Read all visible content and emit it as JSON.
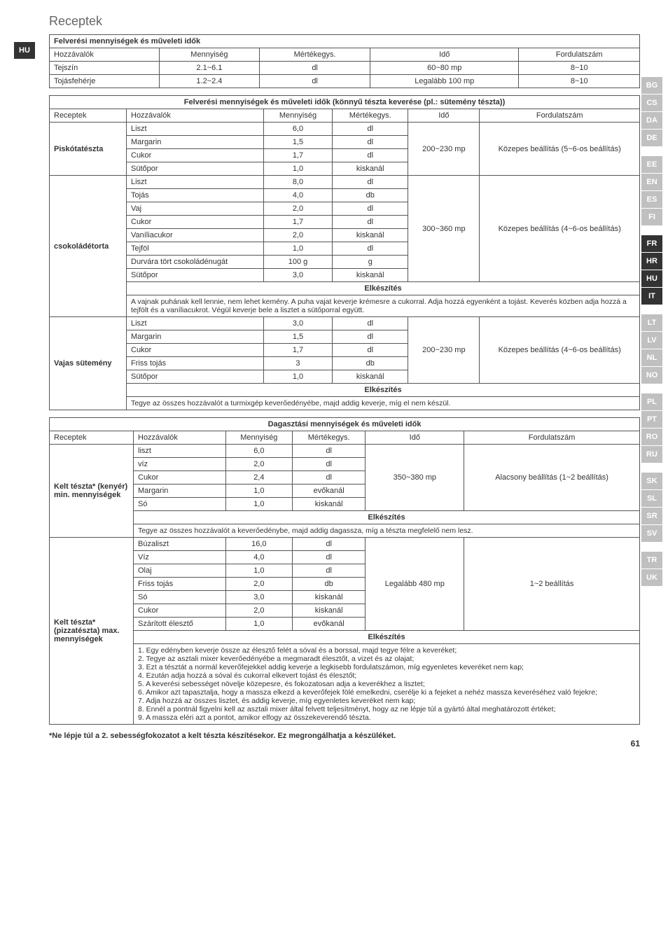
{
  "page": {
    "title": "Receptek",
    "footnote": "*Ne lépje túl a 2. sebességfokozatot a kelt tészta készítésekor. Ez megrongálhatja a készüléket.",
    "pagenum": "61"
  },
  "leftTabs": [
    "HU"
  ],
  "rightTabs": [
    "BG",
    "CS",
    "DA",
    "DE",
    "",
    "EE",
    "EN",
    "ES",
    "FI",
    "",
    "FR",
    "HR",
    "HU",
    "IT",
    "",
    "LT",
    "LV",
    "NL",
    "NO",
    "",
    "PL",
    "PT",
    "RO",
    "RU",
    "",
    "SK",
    "SL",
    "SR",
    "SV",
    "",
    "TR",
    "UK"
  ],
  "rightActive": [
    "FR",
    "HR",
    "HU",
    "IT"
  ],
  "table1": {
    "title": "Felverési mennyiségek és műveleti idők",
    "headers": [
      "Hozzávalók",
      "Mennyiség",
      "Mértékegys.",
      "Idő",
      "Fordulatszám"
    ],
    "rows": [
      [
        "Tejszín",
        "2.1~6.1",
        "dl",
        "60~80 mp",
        "8~10"
      ],
      [
        "Tojásfehérje",
        "1.2~2.4",
        "dl",
        "Legalább 100 mp",
        "8~10"
      ]
    ]
  },
  "table2": {
    "title": "Felverési mennyiségek és műveleti idők (könnyű tészta keverése (pl.: sütemény tészta))",
    "headers": [
      "Receptek",
      "Hozzávalók",
      "Mennyiség",
      "Mértékegys.",
      "Idő",
      "Fordulatszám"
    ],
    "groups": [
      {
        "name": "Piskótatészta",
        "time": "200~230 mp",
        "speed": "Közepes beállítás (5~6-os beállítás)",
        "rows": [
          [
            "Liszt",
            "6,0",
            "dl"
          ],
          [
            "Margarin",
            "1,5",
            "dl"
          ],
          [
            "Cukor",
            "1,7",
            "dl"
          ],
          [
            "Sütőpor",
            "1,0",
            "kiskanál"
          ]
        ]
      },
      {
        "name": "csokoládétorta",
        "time": "300~360 mp",
        "speed": "Közepes beállítás (4~6-os beállítás)",
        "rows": [
          [
            "Liszt",
            "8,0",
            "dl"
          ],
          [
            "Tojás",
            "4,0",
            "db"
          ],
          [
            "Vaj",
            "2,0",
            "dl"
          ],
          [
            "Cukor",
            "1,7",
            "dl"
          ],
          [
            "Vaníliacukor",
            "2,0",
            "kiskanál"
          ],
          [
            "Tejföl",
            "1,0",
            "dl"
          ],
          [
            "Durvára tört csokoládénugát",
            "100 g",
            "g"
          ],
          [
            "Sütőpor",
            "3,0",
            "kiskanál"
          ]
        ],
        "elkeszites": "Elkészítés",
        "note": "A vajnak puhának kell lennie, nem lehet kemény. A puha vajat keverje krémesre a cukorral. Adja hozzá egyenként a tojást. Keverés közben adja hozzá a tejfölt és a vaníliacukrot. Végül keverje bele a lisztet a sütőporral együtt."
      },
      {
        "name": "Vajas sütemény",
        "time": "200~230 mp",
        "speed": "Közepes beállítás (4~6-os beállítás)",
        "rows": [
          [
            "Liszt",
            "3,0",
            "dl"
          ],
          [
            "Margarin",
            "1,5",
            "dl"
          ],
          [
            "Cukor",
            "1,7",
            "dl"
          ],
          [
            "Friss tojás",
            "3",
            "db"
          ],
          [
            "Sütőpor",
            "1,0",
            "kiskanál"
          ]
        ],
        "elkeszites": "Elkészítés",
        "note": "Tegye az összes hozzávalót a turmixgép keverőedényébe, majd addig keverje, míg el nem készül."
      }
    ]
  },
  "table3": {
    "title": "Dagasztási mennyiségek és műveleti idők",
    "headers": [
      "Receptek",
      "Hozzávalók",
      "Mennyiség",
      "Mértékegys.",
      "Idő",
      "Fordulatszám"
    ],
    "groups": [
      {
        "name": "Kelt tészta* (kenyér) min. mennyiségek",
        "time": "350~380 mp",
        "speed": "Alacsony beállítás (1~2 beállítás)",
        "rows": [
          [
            "liszt",
            "6,0",
            "dl"
          ],
          [
            "víz",
            "2,0",
            "dl"
          ],
          [
            "Cukor",
            "2,4",
            "dl"
          ],
          [
            "Margarin",
            "1,0",
            "evőkanál"
          ],
          [
            "Só",
            "1,0",
            "kiskanál"
          ]
        ],
        "elkeszites": "Elkészítés",
        "note": "Tegye az összes hozzávalót a keverőedénybe, majd addig dagassza, míg a tészta megfelelő nem lesz."
      },
      {
        "name": "Kelt tészta* (pizzatészta) max. mennyiségek",
        "time": "Legalább 480 mp",
        "speed": "1~2 beállítás",
        "rows": [
          [
            "Búzaliszt",
            "16,0",
            "dl"
          ],
          [
            "Víz",
            "4,0",
            "dl"
          ],
          [
            "Olaj",
            "1,0",
            "dl"
          ],
          [
            "Friss tojás",
            "2,0",
            "db"
          ],
          [
            "Só",
            "3,0",
            "kiskanál"
          ],
          [
            "Cukor",
            "2,0",
            "kiskanál"
          ],
          [
            "Szárított élesztő",
            "1,0",
            "evőkanál"
          ]
        ],
        "elkeszites": "Elkészítés",
        "note": "1. Egy edényben keverje össze az élesztő felét a sóval és a borssal, majd tegye félre a keveréket;\n2. Tegye az asztali mixer keverőedényébe a megmaradt élesztőt, a vizet és az olajat;\n3. Ezt a tésztát a normál keverőfejekkel addig keverje a legkisebb fordulatszámon, míg egyenletes keveréket nem kap;\n4. Ezután adja hozzá a sóval és cukorral elkevert tojást és élesztőt;\n5. A keverési sebességet növelje közepesre, és fokozatosan adja a keverékhez a lisztet;\n6. Amikor azt tapasztalja, hogy a massza elkezd a keverőfejek fölé emelkedni, cserélje ki a fejeket a nehéz massza keveréséhez való fejekre;\n7. Adja hozzá az összes lisztet, és addig keverje, míg egyenletes keveréket nem kap;\n8. Ennél a pontnál figyelni kell az asztali mixer által felvett teljesítményt, hogy az ne lépje túl a gyártó által meghatározott értéket;\n9. A massza eléri azt a pontot, amikor elfogy az összekeverendő tészta."
      }
    ]
  }
}
